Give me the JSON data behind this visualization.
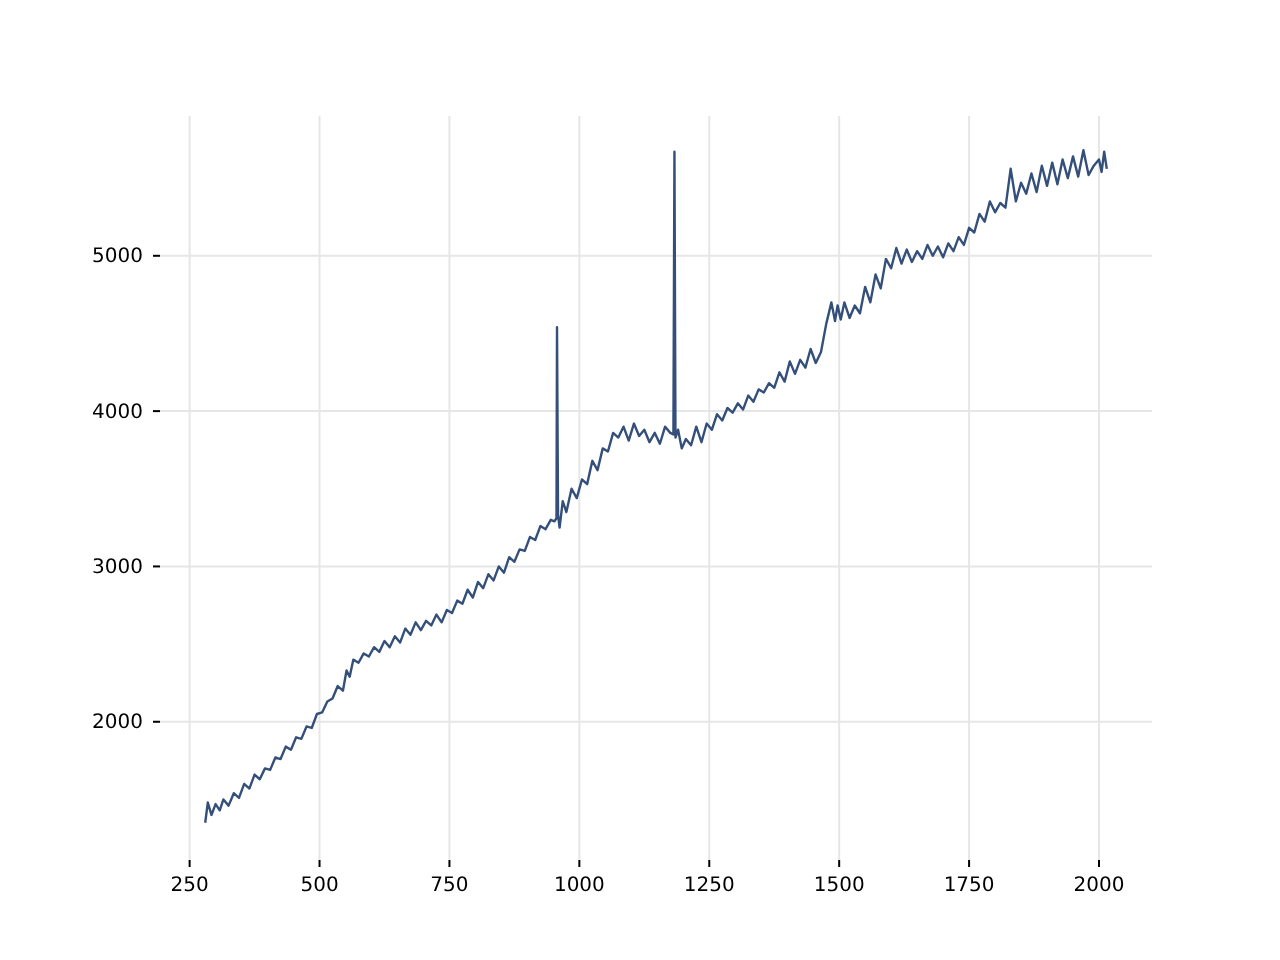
{
  "chart_data": {
    "type": "line",
    "xlim": [
      193,
      2102
    ],
    "ylim": [
      1110,
      5900
    ],
    "xticks": [
      250,
      500,
      750,
      1000,
      1250,
      1500,
      1750,
      2000
    ],
    "yticks": [
      2000,
      3000,
      4000,
      5000
    ],
    "grid": true,
    "series": [
      {
        "color": "#34507a",
        "x": [
          280,
          285,
          292,
          300,
          308,
          315,
          325,
          335,
          345,
          355,
          365,
          375,
          385,
          395,
          405,
          415,
          425,
          435,
          445,
          455,
          465,
          475,
          485,
          495,
          505,
          515,
          525,
          535,
          545,
          552,
          558,
          565,
          575,
          585,
          595,
          605,
          615,
          625,
          635,
          645,
          655,
          665,
          675,
          685,
          695,
          705,
          715,
          725,
          735,
          745,
          755,
          765,
          775,
          785,
          795,
          805,
          815,
          825,
          835,
          845,
          855,
          865,
          875,
          885,
          895,
          905,
          915,
          925,
          935,
          945,
          952,
          956,
          957,
          959,
          962,
          968,
          975,
          985,
          995,
          1005,
          1015,
          1025,
          1035,
          1045,
          1055,
          1065,
          1075,
          1085,
          1095,
          1105,
          1115,
          1125,
          1135,
          1145,
          1155,
          1165,
          1175,
          1181,
          1183,
          1185,
          1190,
          1197,
          1205,
          1215,
          1225,
          1235,
          1245,
          1255,
          1265,
          1275,
          1285,
          1295,
          1305,
          1315,
          1325,
          1335,
          1345,
          1355,
          1365,
          1375,
          1385,
          1395,
          1405,
          1415,
          1425,
          1435,
          1445,
          1455,
          1465,
          1475,
          1485,
          1492,
          1497,
          1503,
          1510,
          1520,
          1530,
          1540,
          1550,
          1560,
          1570,
          1580,
          1590,
          1600,
          1610,
          1620,
          1630,
          1640,
          1650,
          1660,
          1670,
          1680,
          1690,
          1700,
          1710,
          1720,
          1730,
          1740,
          1750,
          1760,
          1770,
          1780,
          1790,
          1800,
          1810,
          1820,
          1830,
          1840,
          1850,
          1860,
          1870,
          1880,
          1890,
          1900,
          1910,
          1920,
          1930,
          1940,
          1950,
          1960,
          1970,
          1980,
          1990,
          2000,
          2005,
          2010,
          2015
        ],
        "values": [
          1350,
          1480,
          1400,
          1470,
          1430,
          1500,
          1460,
          1540,
          1510,
          1600,
          1570,
          1660,
          1630,
          1700,
          1690,
          1770,
          1760,
          1840,
          1820,
          1900,
          1890,
          1970,
          1960,
          2050,
          2060,
          2130,
          2150,
          2230,
          2200,
          2330,
          2290,
          2400,
          2380,
          2440,
          2420,
          2480,
          2450,
          2520,
          2480,
          2550,
          2510,
          2600,
          2560,
          2640,
          2590,
          2650,
          2620,
          2690,
          2640,
          2720,
          2700,
          2780,
          2760,
          2850,
          2800,
          2900,
          2860,
          2950,
          2910,
          3000,
          2960,
          3060,
          3030,
          3110,
          3100,
          3190,
          3170,
          3260,
          3240,
          3300,
          3290,
          3310,
          4540,
          3330,
          3250,
          3420,
          3350,
          3500,
          3440,
          3560,
          3530,
          3680,
          3620,
          3760,
          3740,
          3860,
          3830,
          3900,
          3810,
          3920,
          3840,
          3880,
          3800,
          3860,
          3790,
          3900,
          3860,
          3850,
          5670,
          3830,
          3880,
          3760,
          3820,
          3780,
          3900,
          3800,
          3920,
          3880,
          3980,
          3940,
          4020,
          3990,
          4050,
          4010,
          4100,
          4060,
          4140,
          4120,
          4180,
          4150,
          4250,
          4190,
          4320,
          4240,
          4330,
          4280,
          4400,
          4310,
          4380,
          4560,
          4700,
          4580,
          4680,
          4590,
          4700,
          4600,
          4680,
          4630,
          4800,
          4700,
          4880,
          4790,
          4980,
          4920,
          5050,
          4950,
          5040,
          4960,
          5030,
          4980,
          5070,
          5000,
          5060,
          4990,
          5080,
          5030,
          5120,
          5070,
          5180,
          5150,
          5270,
          5220,
          5350,
          5280,
          5340,
          5310,
          5560,
          5350,
          5470,
          5400,
          5530,
          5410,
          5580,
          5450,
          5600,
          5460,
          5620,
          5500,
          5640,
          5510,
          5680,
          5520,
          5580,
          5620,
          5540,
          5670,
          5560
        ]
      }
    ]
  }
}
